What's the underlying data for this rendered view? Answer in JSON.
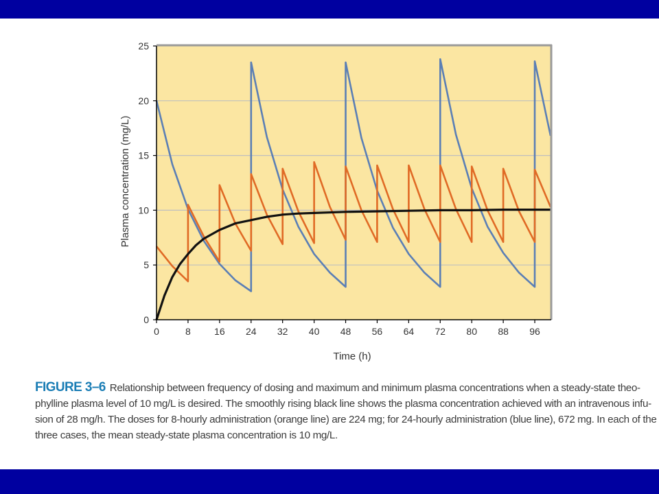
{
  "chart_data": {
    "type": "line",
    "xlabel": "Time (h)",
    "ylabel": "Plasma concentration (mg/L)",
    "xlim": [
      0,
      100
    ],
    "ylim": [
      0,
      25
    ],
    "xticks": [
      0,
      8,
      16,
      24,
      32,
      40,
      48,
      56,
      64,
      72,
      80,
      88,
      96
    ],
    "yticks": [
      0,
      5,
      10,
      15,
      20,
      25
    ],
    "grid": "horizontal",
    "background": "#fbe6a2",
    "series": [
      {
        "color": "#5b7fb5",
        "x": [
          0,
          4,
          8,
          12,
          16,
          20,
          24,
          24,
          28,
          32,
          36,
          40,
          44,
          48,
          48,
          52,
          56,
          60,
          64,
          68,
          72,
          72,
          76,
          80,
          84,
          88,
          92,
          96,
          96,
          100
        ],
        "y": [
          20.0,
          14.2,
          10.1,
          7.2,
          5.1,
          3.6,
          2.6,
          23.5,
          16.7,
          11.9,
          8.5,
          6.0,
          4.3,
          3.0,
          23.5,
          16.6,
          11.8,
          8.4,
          6.0,
          4.3,
          3.0,
          23.8,
          16.9,
          12.0,
          8.5,
          6.1,
          4.3,
          3.0,
          23.6,
          16.8
        ]
      },
      {
        "color": "#e06a25",
        "x": [
          0,
          4,
          8,
          8,
          12,
          16,
          16,
          20,
          24,
          24,
          28,
          32,
          32,
          36,
          40,
          40,
          44,
          48,
          48,
          52,
          56,
          56,
          60,
          64,
          64,
          68,
          72,
          72,
          76,
          80,
          80,
          84,
          88,
          88,
          92,
          96,
          96,
          100
        ],
        "y": [
          6.7,
          4.9,
          3.5,
          10.5,
          7.6,
          5.3,
          12.3,
          8.8,
          6.3,
          13.3,
          9.6,
          6.9,
          13.8,
          9.9,
          7.0,
          14.4,
          10.3,
          7.3,
          14.0,
          10.0,
          7.1,
          14.1,
          10.1,
          7.1,
          14.1,
          10.1,
          7.1,
          14.1,
          10.1,
          7.1,
          14.0,
          10.0,
          7.1,
          13.8,
          9.9,
          7.1,
          13.7,
          10.3
        ]
      },
      {
        "color": "#111111",
        "x": [
          0,
          2,
          4,
          6,
          8,
          10,
          12,
          16,
          20,
          24,
          28,
          32,
          36,
          40,
          48,
          56,
          64,
          72,
          80,
          88,
          96,
          100
        ],
        "y": [
          0.0,
          2.2,
          3.9,
          5.1,
          6.0,
          6.8,
          7.4,
          8.2,
          8.8,
          9.1,
          9.4,
          9.6,
          9.7,
          9.75,
          9.85,
          9.9,
          9.95,
          10.0,
          10.0,
          10.05,
          10.05,
          10.05
        ]
      }
    ]
  },
  "caption": {
    "label": "FIGURE 3–6",
    "lines": [
      "Relationship between frequency of dosing and maximum and minimum plasma concentrations when a steady-state theo-",
      "phylline plasma level of 10 mg/L is desired. The smoothly rising black line shows the plasma concentration achieved with an intravenous infu-",
      "sion of 28 mg/h. The doses for 8-hourly administration (orange line) are 224 mg; for 24-hourly administration (blue line), 672 mg. In each of the",
      "three cases, the mean steady-state plasma concentration is 10 mg/L."
    ]
  },
  "colors": {
    "band": "#0000a0",
    "caption_label": "#1a7db5",
    "caption_text": "#3a3a3a"
  }
}
